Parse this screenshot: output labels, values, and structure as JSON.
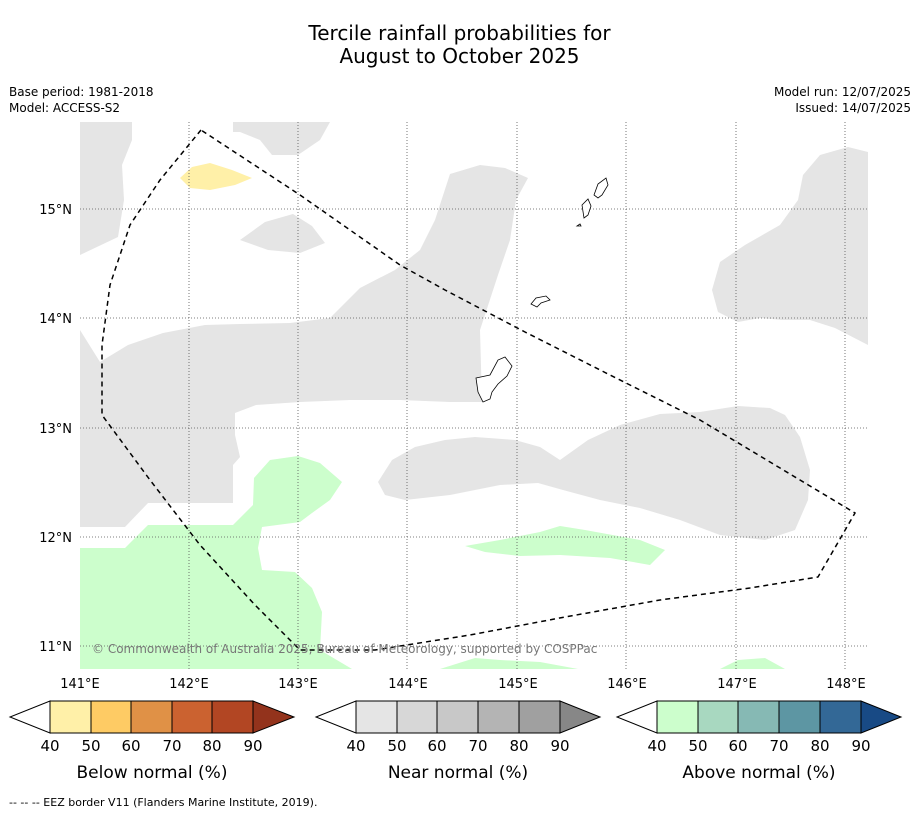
{
  "title_line1": "Tercile rainfall probabilities for",
  "title_line2": "August to October 2025",
  "base_period": "Base period: 1981-2018",
  "model": "Model: ACCESS-S2",
  "model_run": "Model run: 12/07/2025",
  "issued": "Issued: 14/07/2025",
  "copyright": "© Commonwealth of Australia 2025, Bureau of Meteorology, supported by COSPPac",
  "footnote": "--  --  -- EEZ border V11 (Flanders Marine Institute, 2019).",
  "latitudes": [
    "15°N",
    "14°N",
    "13°N",
    "12°N",
    "11°N"
  ],
  "longitudes": [
    "141°E",
    "142°E",
    "143°E",
    "144°E",
    "145°E",
    "146°E",
    "147°E",
    "148°E"
  ],
  "colorbars": [
    {
      "label": "Below normal (%)",
      "ticks": [
        "40",
        "50",
        "60",
        "70",
        "80",
        "90"
      ],
      "colors": [
        "#fff0a8",
        "#fecb64",
        "#e09146",
        "#cb6230",
        "#b24623",
        "#93331c"
      ]
    },
    {
      "label": "Near normal (%)",
      "ticks": [
        "40",
        "50",
        "60",
        "70",
        "80",
        "90"
      ],
      "colors": [
        "#e5e5e5",
        "#d7d7d7",
        "#c8c8c8",
        "#b4b4b4",
        "#a0a0a0",
        "#878787"
      ]
    },
    {
      "label": "Above normal (%)",
      "ticks": [
        "40",
        "50",
        "60",
        "70",
        "80",
        "90"
      ],
      "colors": [
        "#ccfecc",
        "#a8d8c0",
        "#86b9b4",
        "#5d96a3",
        "#336896",
        "#184a85"
      ]
    }
  ]
}
